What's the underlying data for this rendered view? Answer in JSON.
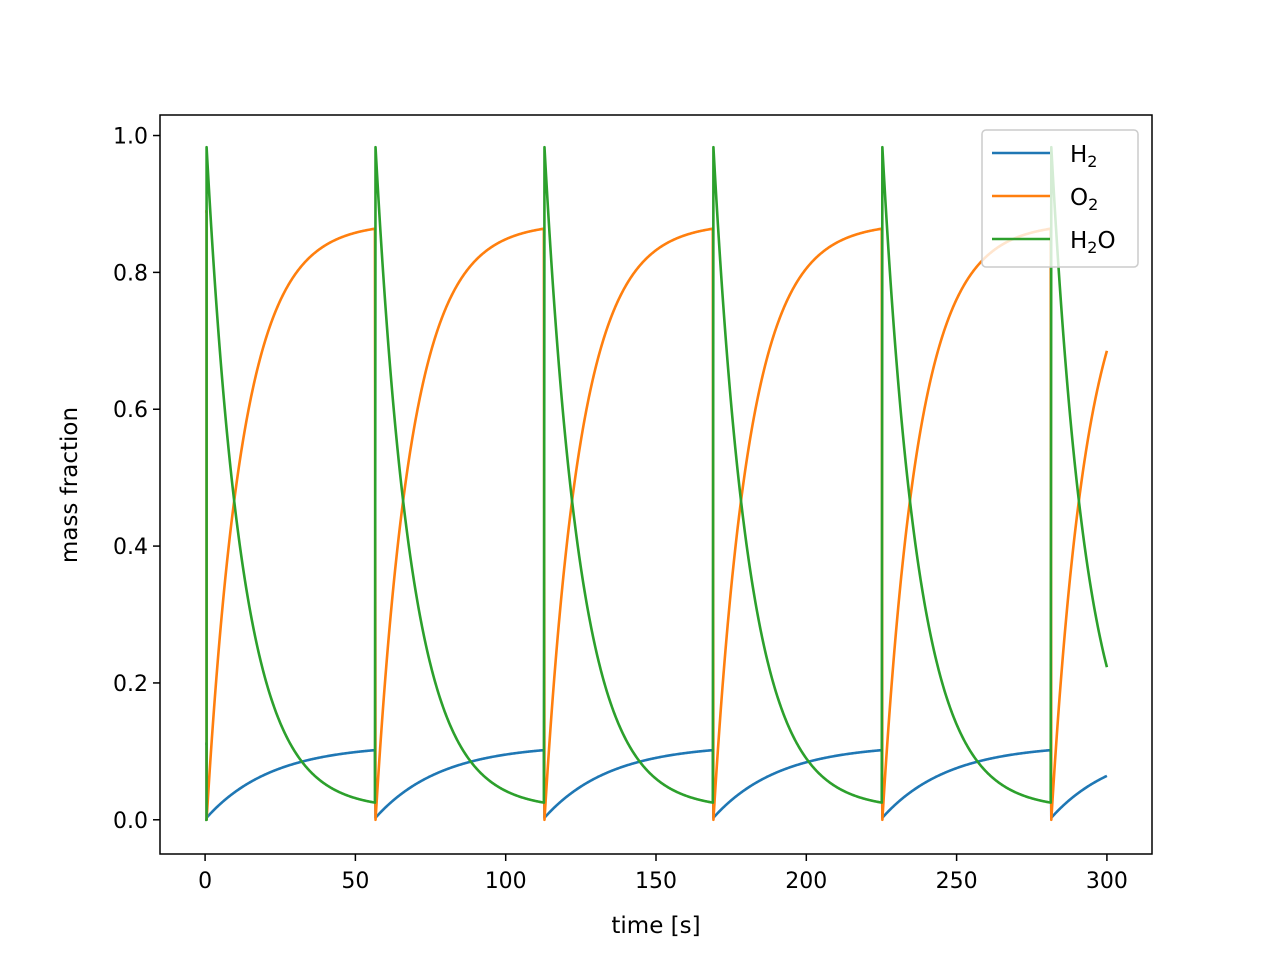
{
  "chart_data": {
    "type": "line",
    "title": "",
    "xlabel": "time [s]",
    "ylabel": "mass fraction",
    "xlim": [
      -15,
      315
    ],
    "ylim": [
      -0.05,
      1.03
    ],
    "xticks": [
      0,
      50,
      100,
      150,
      200,
      250,
      300
    ],
    "yticks": [
      0.0,
      0.2,
      0.4,
      0.6,
      0.8,
      1.0
    ],
    "xtick_labels": [
      "0",
      "50",
      "100",
      "150",
      "200",
      "250",
      "300"
    ],
    "ytick_labels": [
      "0.0",
      "0.2",
      "0.4",
      "0.6",
      "0.8",
      "1.0"
    ],
    "grid": false,
    "legend_position": "upper right",
    "cycle_starts": [
      0.5,
      56.7,
      112.9,
      169.1,
      225.3,
      281.5
    ],
    "series": [
      {
        "name": "H2",
        "legend_base": "H",
        "legend_sub": "2",
        "legend_tail": "",
        "color": "#1f77b4",
        "initial_value": 0.111,
        "cycle_min": 0.003,
        "cycle_max": 0.11,
        "time_constant": 12,
        "end_value": 0.089
      },
      {
        "name": "O2",
        "legend_base": "O",
        "legend_sub": "2",
        "legend_tail": "",
        "color": "#ff7f0e",
        "initial_value": 0.889,
        "cycle_min": 0.0,
        "cycle_max": 0.872,
        "time_constant": 12,
        "end_value": 0.705
      },
      {
        "name": "H2O",
        "legend_base": "H",
        "legend_sub": "2",
        "legend_tail": "O",
        "color": "#2ca02c",
        "initial_value": 0.0,
        "cycle_min": 0.016,
        "cycle_max": 0.983,
        "time_constant": 12,
        "end_value": 0.205
      }
    ],
    "x_end": 300
  }
}
